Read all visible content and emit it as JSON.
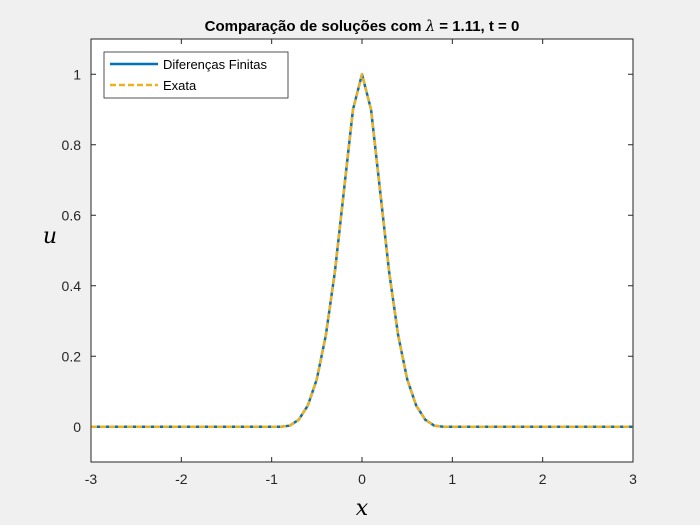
{
  "chart_data": {
    "type": "line",
    "title": "Comparação de soluções com λ = 1.11, t = 0",
    "title_parts": {
      "prefix": "Comparação de soluções com ",
      "symbol": "λ",
      "suffix": " = 1.11, t = 0"
    },
    "xlabel": "x",
    "ylabel": "u",
    "xlim": [
      -3,
      3
    ],
    "ylim": [
      -0.1,
      1.1
    ],
    "xticks": [
      -3,
      -2,
      -1,
      0,
      1,
      2,
      3
    ],
    "yticks": [
      0,
      0.2,
      0.4,
      0.6,
      0.8,
      1
    ],
    "xtick_labels": [
      "-3",
      "-2",
      "-1",
      "0",
      "1",
      "2",
      "3"
    ],
    "ytick_labels": [
      "0",
      "0.2",
      "0.4",
      "0.6",
      "0.8",
      "1"
    ],
    "grid": false,
    "legend_position": "top-left",
    "x": [
      -3,
      -1,
      -0.9,
      -0.8,
      -0.7,
      -0.6,
      -0.5,
      -0.4,
      -0.3,
      -0.2,
      -0.1,
      0,
      0.1,
      0.2,
      0.3,
      0.4,
      0.5,
      0.6,
      0.7,
      0.8,
      0.9,
      1,
      3
    ],
    "series": [
      {
        "name": "Diferenças Finitas",
        "color": "#0072BD",
        "style": "solid",
        "values": [
          0,
          0.0,
          0.0,
          0.003,
          0.02,
          0.06,
          0.135,
          0.26,
          0.44,
          0.67,
          0.9,
          1.0,
          0.9,
          0.67,
          0.44,
          0.26,
          0.135,
          0.06,
          0.02,
          0.003,
          0.0,
          0.0,
          0
        ]
      },
      {
        "name": "Exata",
        "color": "#EDB120",
        "style": "dashed",
        "values": [
          0,
          0.0,
          0.0,
          0.003,
          0.02,
          0.06,
          0.135,
          0.26,
          0.44,
          0.67,
          0.9,
          1.0,
          0.9,
          0.67,
          0.44,
          0.26,
          0.135,
          0.06,
          0.02,
          0.003,
          0.0,
          0.0,
          0
        ]
      }
    ]
  }
}
